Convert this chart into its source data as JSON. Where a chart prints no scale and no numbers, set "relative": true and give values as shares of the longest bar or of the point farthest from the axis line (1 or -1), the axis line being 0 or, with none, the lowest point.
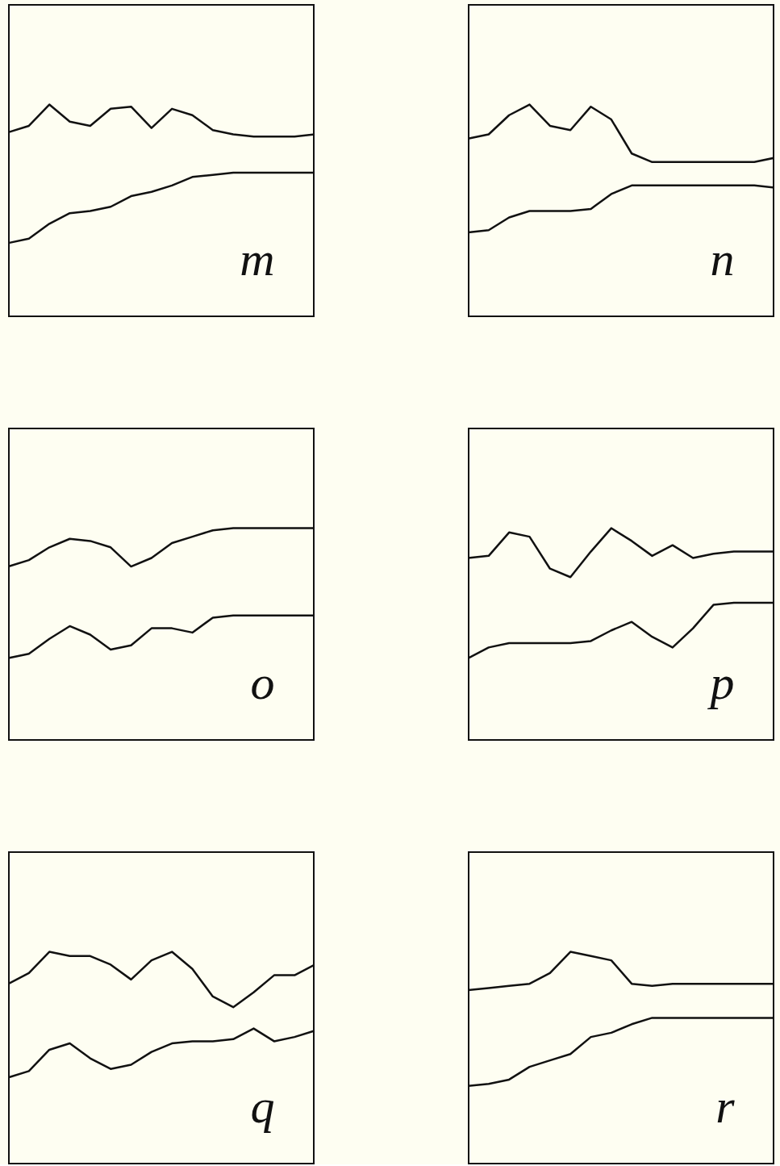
{
  "chart_data": [
    {
      "type": "line",
      "relative": true,
      "categories": [
        null,
        null,
        null,
        null,
        null,
        null,
        null,
        null,
        null,
        null,
        null,
        null,
        null,
        null,
        null,
        null
      ],
      "annotations": [
        "m"
      ],
      "series": [
        {
          "color": "#111111",
          "values": [
            0.87,
            0.9,
            1.0,
            0.92,
            0.9,
            0.98,
            0.99,
            0.89,
            0.98,
            0.95,
            0.88,
            0.86,
            0.85,
            0.85,
            0.85,
            0.86
          ]
        },
        {
          "color": "#111111",
          "values": [
            0.35,
            0.37,
            0.44,
            0.49,
            0.5,
            0.52,
            0.57,
            0.59,
            0.62,
            0.66,
            0.67,
            0.68,
            0.68,
            0.68,
            0.68,
            0.68
          ]
        }
      ]
    },
    {
      "type": "line",
      "relative": true,
      "categories": [
        null,
        null,
        null,
        null,
        null,
        null,
        null,
        null,
        null,
        null,
        null,
        null,
        null,
        null,
        null,
        null
      ],
      "annotations": [
        "n"
      ],
      "series": [
        {
          "color": "#111111",
          "values": [
            0.84,
            0.86,
            0.95,
            1.0,
            0.9,
            0.88,
            0.99,
            0.93,
            0.77,
            0.73,
            0.73,
            0.73,
            0.73,
            0.73,
            0.73,
            0.75
          ]
        },
        {
          "color": "#111111",
          "values": [
            0.4,
            0.41,
            0.47,
            0.5,
            0.5,
            0.5,
            0.51,
            0.58,
            0.62,
            0.62,
            0.62,
            0.62,
            0.62,
            0.62,
            0.62,
            0.61
          ]
        }
      ]
    },
    {
      "type": "line",
      "relative": true,
      "categories": [
        null,
        null,
        null,
        null,
        null,
        null,
        null,
        null,
        null,
        null,
        null,
        null,
        null,
        null,
        null,
        null
      ],
      "annotations": [
        "o"
      ],
      "series": [
        {
          "color": "#111111",
          "values": [
            0.82,
            0.85,
            0.91,
            0.95,
            0.94,
            0.91,
            0.82,
            0.86,
            0.93,
            0.96,
            0.99,
            1.0,
            1.0,
            1.0,
            1.0,
            1.0
          ]
        },
        {
          "color": "#111111",
          "values": [
            0.39,
            0.41,
            0.48,
            0.54,
            0.5,
            0.43,
            0.45,
            0.53,
            0.53,
            0.51,
            0.58,
            0.59,
            0.59,
            0.59,
            0.59,
            0.59
          ]
        }
      ]
    },
    {
      "type": "line",
      "relative": true,
      "categories": [
        null,
        null,
        null,
        null,
        null,
        null,
        null,
        null,
        null,
        null,
        null,
        null,
        null,
        null,
        null,
        null
      ],
      "annotations": [
        "p"
      ],
      "series": [
        {
          "color": "#111111",
          "values": [
            0.86,
            0.87,
            0.98,
            0.96,
            0.81,
            0.77,
            0.89,
            1.0,
            0.94,
            0.87,
            0.92,
            0.86,
            0.88,
            0.89,
            0.89,
            0.89
          ]
        },
        {
          "color": "#111111",
          "values": [
            0.39,
            0.44,
            0.46,
            0.46,
            0.46,
            0.46,
            0.47,
            0.52,
            0.56,
            0.49,
            0.44,
            0.53,
            0.64,
            0.65,
            0.65,
            0.65
          ]
        }
      ]
    },
    {
      "type": "line",
      "relative": true,
      "categories": [
        null,
        null,
        null,
        null,
        null,
        null,
        null,
        null,
        null,
        null,
        null,
        null,
        null,
        null,
        null,
        null
      ],
      "annotations": [
        "q"
      ],
      "series": [
        {
          "color": "#111111",
          "values": [
            0.85,
            0.9,
            1.0,
            0.98,
            0.98,
            0.94,
            0.87,
            0.96,
            1.0,
            0.92,
            0.79,
            0.74,
            0.81,
            0.89,
            0.89,
            0.94
          ]
        },
        {
          "color": "#111111",
          "values": [
            0.41,
            0.44,
            0.54,
            0.57,
            0.5,
            0.45,
            0.47,
            0.53,
            0.57,
            0.58,
            0.58,
            0.59,
            0.64,
            0.58,
            0.6,
            0.63
          ]
        }
      ]
    },
    {
      "type": "line",
      "relative": true,
      "categories": [
        null,
        null,
        null,
        null,
        null,
        null,
        null,
        null,
        null,
        null,
        null,
        null,
        null,
        null,
        null,
        null
      ],
      "annotations": [
        "r"
      ],
      "series": [
        {
          "color": "#111111",
          "values": [
            0.82,
            0.83,
            0.84,
            0.85,
            0.9,
            1.0,
            0.98,
            0.96,
            0.85,
            0.84,
            0.85,
            0.85,
            0.85,
            0.85,
            0.85,
            0.85
          ]
        },
        {
          "color": "#111111",
          "values": [
            0.37,
            0.38,
            0.4,
            0.46,
            0.49,
            0.52,
            0.6,
            0.62,
            0.66,
            0.69,
            0.69,
            0.69,
            0.69,
            0.69,
            0.69,
            0.69
          ]
        }
      ]
    }
  ]
}
